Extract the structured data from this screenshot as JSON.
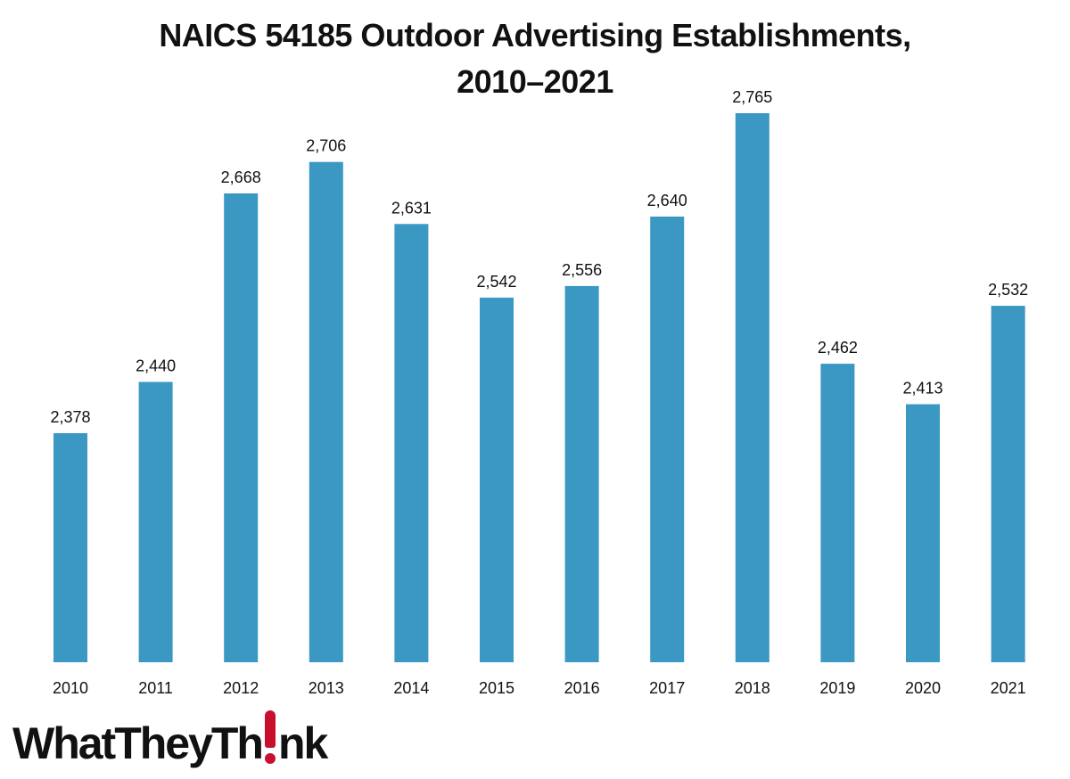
{
  "chart_data": {
    "type": "bar",
    "title": "NAICS 54185 Outdoor Advertising Establishments,",
    "subtitle": "2010–2021",
    "categories": [
      "2010",
      "2011",
      "2012",
      "2013",
      "2014",
      "2015",
      "2016",
      "2017",
      "2018",
      "2019",
      "2020",
      "2021"
    ],
    "values": [
      2378,
      2440,
      2668,
      2706,
      2631,
      2542,
      2556,
      2640,
      2765,
      2462,
      2413,
      2532
    ],
    "value_labels": [
      "2,378",
      "2,440",
      "2,668",
      "2,706",
      "2,631",
      "2,542",
      "2,556",
      "2,640",
      "2,765",
      "2,462",
      "2,413",
      "2,532"
    ],
    "xlabel": "",
    "ylabel": "",
    "ylim": [
      2000,
      2800
    ],
    "grid": false,
    "legend": "none",
    "bar_color": "#3a98c3"
  },
  "logo": {
    "text_before": "WhatTheyTh",
    "text_after": "nk",
    "accent_color": "#c8102e"
  }
}
